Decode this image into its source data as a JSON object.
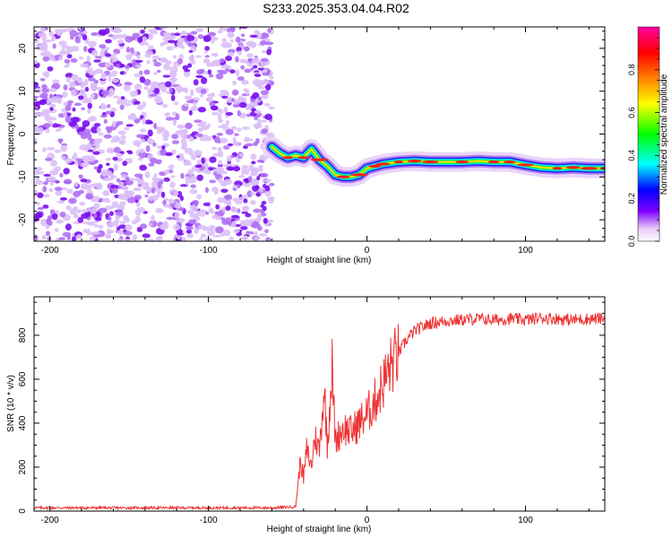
{
  "page_title": "S233.2025.353.04.04.R02",
  "chart_data": [
    {
      "type": "heatmap",
      "xlabel": "Height of straight line (km)",
      "ylabel": "Frequency (Hz)",
      "xlim": [
        -210,
        150
      ],
      "ylim": [
        -25,
        25
      ],
      "x_ticks": [
        -200,
        -100,
        0,
        100
      ],
      "x_tick_labels": [
        "-200",
        "-100",
        "0",
        "100"
      ],
      "y_ticks": [
        -20,
        -10,
        0,
        10,
        20
      ],
      "y_tick_labels": [
        "-20",
        "-10",
        "0",
        "10",
        "20"
      ],
      "grid": false,
      "noise_region_x": [
        -210,
        -60
      ],
      "signal_track": {
        "x": [
          -60,
          -55,
          -50,
          -45,
          -40,
          -35,
          -30,
          -25,
          -20,
          -15,
          -10,
          -5,
          0,
          5,
          10,
          20,
          30,
          40,
          50,
          60,
          70,
          80,
          90,
          100,
          110,
          120,
          130,
          140,
          150
        ],
        "y": [
          -3,
          -4.5,
          -5.5,
          -5,
          -5.5,
          -3.5,
          -6,
          -7.5,
          -9.5,
          -10,
          -10,
          -9.5,
          -8,
          -7.5,
          -7,
          -6.5,
          -6.3,
          -6.5,
          -6.5,
          -6.5,
          -6.3,
          -6.5,
          -6.5,
          -7.2,
          -7.8,
          -8,
          -7.8,
          -8,
          -8
        ]
      },
      "colorbar": {
        "label": "Normalized spectral amplitude",
        "range": [
          0,
          1
        ],
        "ticks": [
          0.0,
          0.2,
          0.4,
          0.6,
          0.8
        ],
        "tick_labels": [
          "0.0",
          "0.2",
          "0.4",
          "0.6",
          "0.8"
        ],
        "colors": [
          "#ffffff",
          "#e8c8f8",
          "#8000ff",
          "#0000ff",
          "#00ffff",
          "#00ff00",
          "#ffff00",
          "#ff8000",
          "#ff0000",
          "#ff00a0"
        ]
      }
    },
    {
      "type": "line",
      "xlabel": "Height of straight line (km)",
      "ylabel": "SNR (10 * v/v)",
      "xlim": [
        -210,
        150
      ],
      "ylim": [
        0,
        975
      ],
      "x_ticks": [
        -200,
        -100,
        0,
        100
      ],
      "x_tick_labels": [
        "-200",
        "-100",
        "0",
        "100"
      ],
      "y_ticks": [
        0,
        200,
        400,
        600,
        800
      ],
      "y_tick_labels": [
        "0",
        "200",
        "400",
        "600",
        "800"
      ],
      "grid": false,
      "series": [
        {
          "color": "#ee3333",
          "x": [
            -210,
            -60,
            -45,
            -42,
            -40,
            -38,
            -35,
            -33,
            -30,
            -27,
            -25,
            -22,
            -20,
            -15,
            -10,
            -5,
            0,
            5,
            10,
            15,
            20,
            25,
            30,
            40,
            50,
            60,
            70,
            80,
            90,
            100,
            110,
            120,
            130,
            140,
            150
          ],
          "y": [
            15,
            15,
            20,
            230,
            150,
            280,
            200,
            340,
            280,
            560,
            300,
            660,
            320,
            380,
            360,
            400,
            440,
            500,
            580,
            660,
            720,
            780,
            820,
            855,
            865,
            870,
            875,
            870,
            875,
            870,
            880,
            875,
            870,
            875,
            875
          ]
        }
      ]
    }
  ]
}
